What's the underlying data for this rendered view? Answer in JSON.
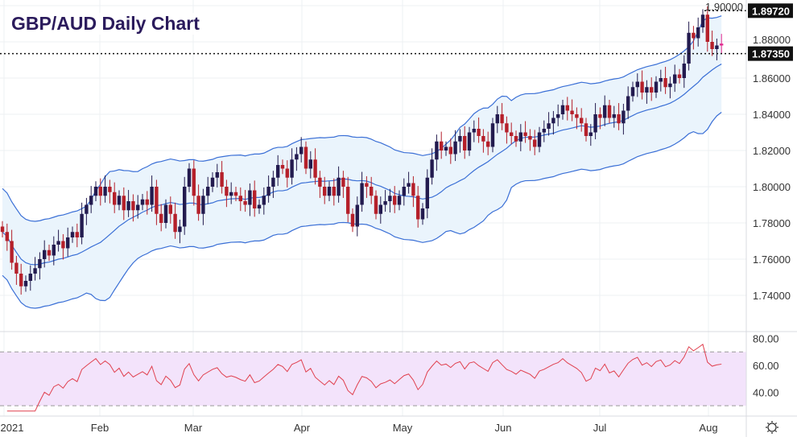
{
  "title": "GBP/AUD Daily Chart",
  "chart_data": {
    "type": "candlestick",
    "title": "GBP/AUD Daily Chart",
    "price_axis": {
      "ticks": [
        "1.74000",
        "1.76000",
        "1.78000",
        "1.80000",
        "1.82000",
        "1.84000",
        "1.86000",
        "1.88000",
        "1.90000"
      ],
      "range": [
        1.735,
        1.9
      ]
    },
    "x_ticks": [
      "2021",
      "Feb",
      "Mar",
      "Apr",
      "May",
      "Jun",
      "Jul",
      "Aug"
    ],
    "closes": [
      1.775,
      1.77,
      1.758,
      1.752,
      1.745,
      1.748,
      1.752,
      1.755,
      1.76,
      1.765,
      1.762,
      1.768,
      1.77,
      1.766,
      1.772,
      1.775,
      1.772,
      1.785,
      1.79,
      1.795,
      1.8,
      1.795,
      1.8,
      1.797,
      1.79,
      1.795,
      1.787,
      1.792,
      1.787,
      1.79,
      1.793,
      1.79,
      1.8,
      1.785,
      1.78,
      1.79,
      1.785,
      1.775,
      1.778,
      1.8,
      1.81,
      1.795,
      1.785,
      1.795,
      1.8,
      1.805,
      1.808,
      1.8,
      1.795,
      1.797,
      1.795,
      1.792,
      1.79,
      1.798,
      1.788,
      1.79,
      1.795,
      1.8,
      1.805,
      1.812,
      1.81,
      1.805,
      1.815,
      1.818,
      1.822,
      1.81,
      1.815,
      1.805,
      1.8,
      1.795,
      1.8,
      1.795,
      1.805,
      1.8,
      1.785,
      1.778,
      1.79,
      1.802,
      1.8,
      1.795,
      1.785,
      1.79,
      1.792,
      1.795,
      1.79,
      1.795,
      1.8,
      1.802,
      1.795,
      1.782,
      1.788,
      1.805,
      1.815,
      1.825,
      1.82,
      1.822,
      1.818,
      1.825,
      1.828,
      1.82,
      1.83,
      1.832,
      1.828,
      1.825,
      1.822,
      1.835,
      1.84,
      1.835,
      1.83,
      1.828,
      1.825,
      1.83,
      1.828,
      1.826,
      1.822,
      1.83,
      1.832,
      1.835,
      1.838,
      1.84,
      1.845,
      1.842,
      1.84,
      1.838,
      1.835,
      1.828,
      1.83,
      1.84,
      1.838,
      1.845,
      1.838,
      1.84,
      1.835,
      1.842,
      1.85,
      1.855,
      1.858,
      1.852,
      1.855,
      1.852,
      1.858,
      1.86,
      1.855,
      1.857,
      1.862,
      1.86,
      1.868,
      1.885,
      1.882,
      1.888,
      1.895,
      1.88,
      1.876,
      1.878,
      1.879
    ],
    "bollinger": {
      "period": 20,
      "stddev": 2
    },
    "levels": [
      {
        "label": "1.89720",
        "value": 1.8972
      },
      {
        "label": "1.87350",
        "value": 1.8735
      }
    ],
    "rsi": {
      "period": 14,
      "ticks": [
        "40.00",
        "60.00",
        "80.00"
      ],
      "overbought": 70,
      "oversold": 30,
      "range": [
        25,
        82
      ]
    }
  },
  "colors": {
    "up": "#231b4f",
    "down": "#b5202a",
    "doji": "#e0258c",
    "band_line": "#3a6fd6",
    "band_fill": "#eaf4fc",
    "rsi_line": "#e0404f",
    "rsi_fill": "#f3e3fb"
  }
}
